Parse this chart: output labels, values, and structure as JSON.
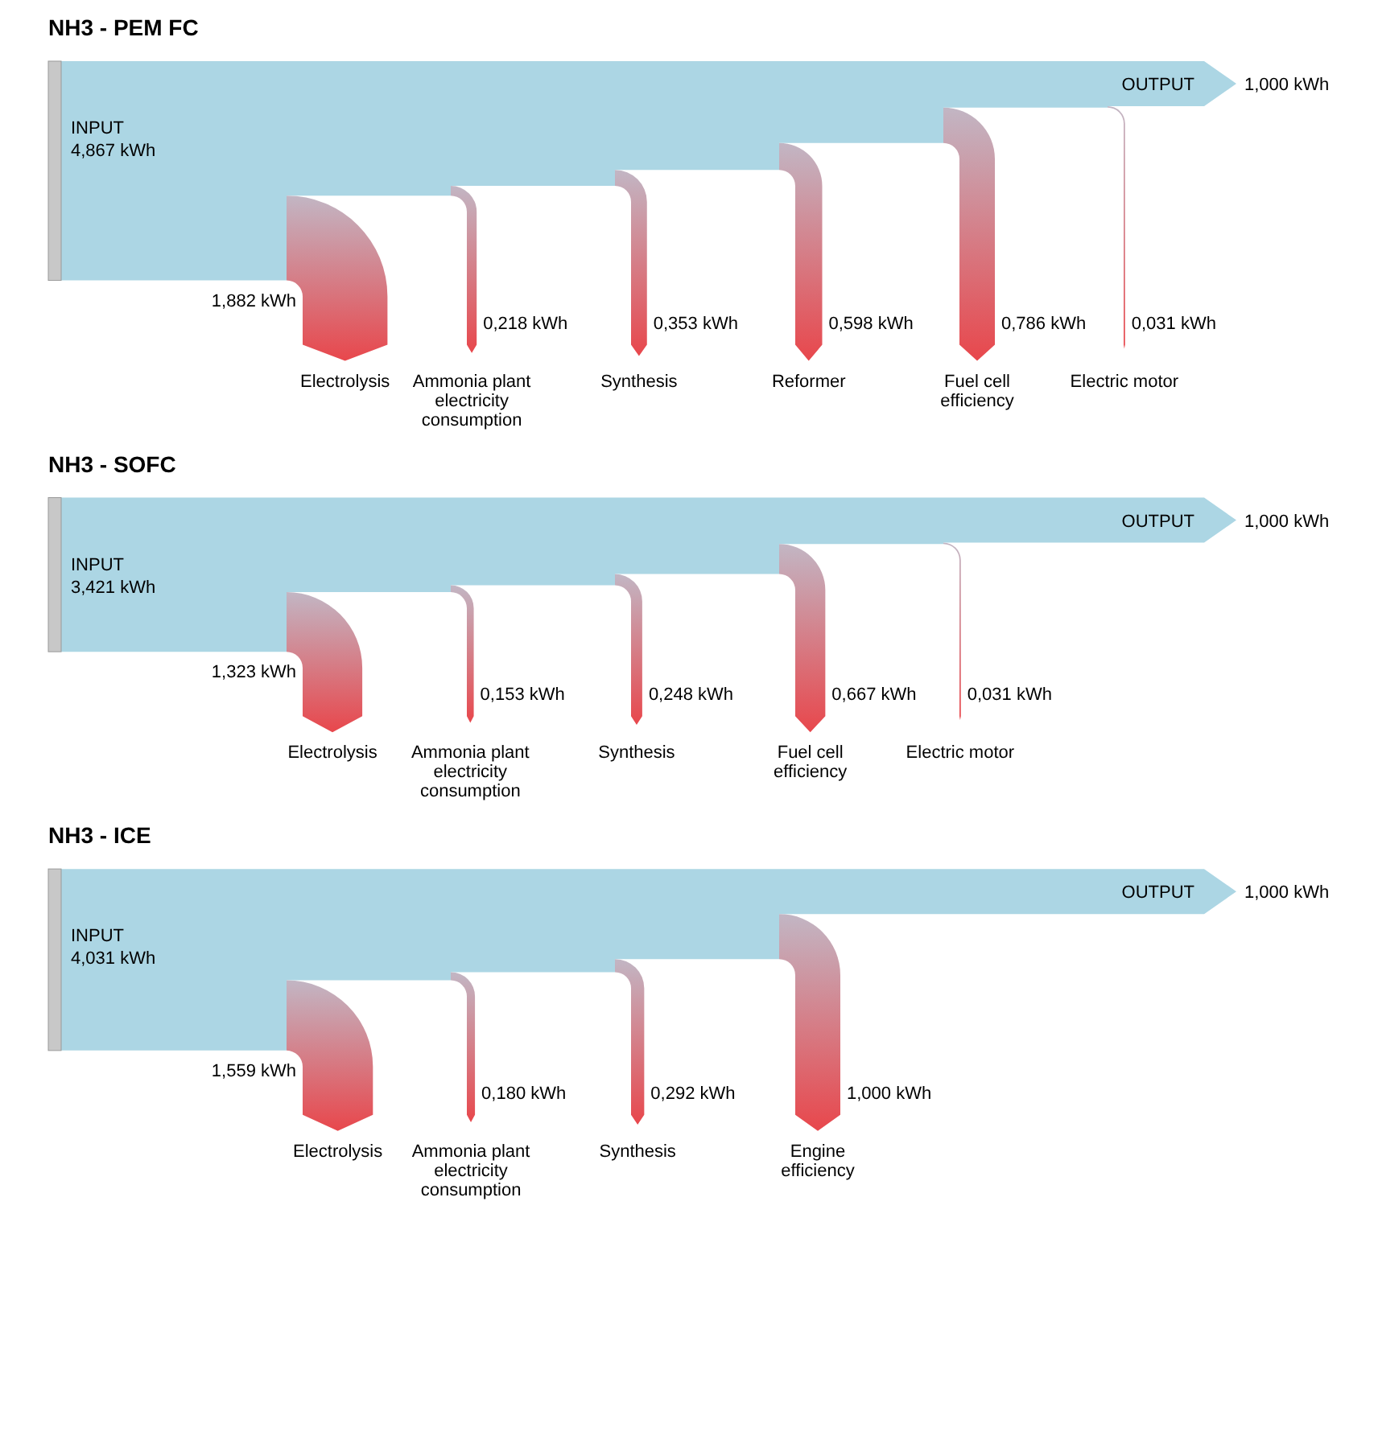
{
  "chart_data": [
    {
      "type": "other",
      "title": "NH3 - PEM FC",
      "categories": [
        "INPUT",
        "Electrolysis",
        "Ammonia plant electricity consumption",
        "Synthesis",
        "Reformer",
        "Fuel cell efficiency",
        "Electric motor",
        "OUTPUT"
      ],
      "values": [
        4.867,
        1.882,
        0.218,
        0.353,
        0.598,
        0.786,
        0.031,
        1.0
      ],
      "value_labels": [
        "4,867 kWh",
        "1,882 kWh",
        "0,218 kWh",
        "0,353 kWh",
        "0,598 kWh",
        "0,786 kWh",
        "0,031 kWh",
        "1,000 kWh"
      ]
    },
    {
      "type": "other",
      "title": "NH3 - SOFC",
      "categories": [
        "INPUT",
        "Electrolysis",
        "Ammonia plant electricity consumption",
        "Synthesis",
        "Fuel cell efficiency",
        "Electric motor",
        "OUTPUT"
      ],
      "values": [
        3.421,
        1.323,
        0.153,
        0.248,
        0.667,
        0.031,
        1.0
      ],
      "value_labels": [
        "3,421 kWh",
        "1,323 kWh",
        "0,153 kWh",
        "0,248 kWh",
        "0,667 kWh",
        "0,031 kWh",
        "1,000 kWh"
      ]
    },
    {
      "type": "other",
      "title": "NH3 - ICE",
      "categories": [
        "INPUT",
        "Electrolysis",
        "Ammonia plant electricity consumption",
        "Synthesis",
        "Engine efficiency",
        "OUTPUT"
      ],
      "values": [
        4.031,
        1.559,
        0.18,
        0.292,
        1.0,
        1.0
      ],
      "value_labels": [
        "4,031 kWh",
        "1,559 kWh",
        "0,180 kWh",
        "0,292 kWh",
        "1,000 kWh",
        "1,000 kWh"
      ]
    }
  ]
}
